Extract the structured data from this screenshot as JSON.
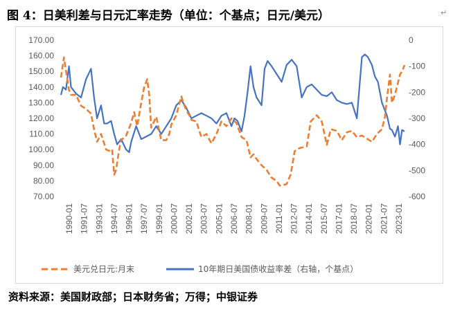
{
  "header": {
    "title": "图 4：日美利差与日元汇率走势（单位：个基点；日元/美元）",
    "end_mark": "↵"
  },
  "footer": {
    "source": "资料来源：美国财政部；日本财务省；万得；中银证券"
  },
  "colors": {
    "usdjpy": "#ED7D31",
    "spread": "#4472C4",
    "axis_text": "#595959",
    "frame": "#d9d9d9"
  },
  "chart_data": {
    "type": "line",
    "title": "",
    "x_tick_labels": [
      "1990-01",
      "1991-07",
      "1993-01",
      "1994-07",
      "1996-01",
      "1997-07",
      "1999-01",
      "2000-07",
      "2002-01",
      "2003-07",
      "2005-01",
      "2006-07",
      "2008-01",
      "2009-07",
      "2011-01",
      "2012-07",
      "2014-01",
      "2015-07",
      "2017-01",
      "2018-07",
      "2020-01",
      "2021-07",
      "2023-01"
    ],
    "x_range": [
      1990.0,
      2024.25
    ],
    "y_left": {
      "ylim": [
        70,
        170
      ],
      "ticks": [
        "70.00",
        "80.00",
        "90.00",
        "100.00",
        "110.00",
        "120.00",
        "130.00",
        "140.00",
        "150.00",
        "160.00",
        "170.00"
      ]
    },
    "y_right": {
      "ylim": [
        -600,
        0
      ],
      "ticks": [
        "-600",
        "-500",
        "-400",
        "-300",
        "-200",
        "-100",
        "0"
      ]
    },
    "series": [
      {
        "name": "美元兑日元:月末",
        "axis": "left",
        "style": "dashed",
        "x": [
          1990.0,
          1990.3,
          1990.8,
          1991.0,
          1991.5,
          1992.0,
          1992.5,
          1993.0,
          1993.3,
          1993.6,
          1994.0,
          1994.5,
          1994.9,
          1995.1,
          1995.3,
          1995.5,
          1995.8,
          1996.0,
          1996.5,
          1997.0,
          1997.3,
          1997.6,
          1998.0,
          1998.3,
          1998.6,
          1998.8,
          1999.0,
          1999.5,
          2000.0,
          2000.5,
          2000.8,
          2001.0,
          2001.5,
          2002.0,
          2002.2,
          2002.5,
          2002.8,
          2003.0,
          2003.5,
          2004.0,
          2004.5,
          2005.0,
          2005.5,
          2006.0,
          2006.5,
          2007.0,
          2007.5,
          2008.0,
          2008.5,
          2008.9,
          2009.2,
          2009.5,
          2010.0,
          2010.5,
          2011.0,
          2011.5,
          2011.8,
          2012.0,
          2012.5,
          2012.9,
          2013.3,
          2013.8,
          2014.5,
          2014.9,
          2015.5,
          2016.0,
          2016.5,
          2016.9,
          2017.5,
          2018.0,
          2018.5,
          2019.0,
          2019.5,
          2020.0,
          2020.5,
          2021.0,
          2021.5,
          2022.0,
          2022.3,
          2022.5,
          2022.8,
          2023.0,
          2023.3,
          2023.8,
          2024.0,
          2024.25
        ],
        "values": [
          146,
          159,
          138,
          135,
          135,
          128,
          126,
          123,
          113,
          105,
          110,
          100,
          99,
          100,
          84,
          87,
          100,
          106,
          109,
          117,
          124,
          115,
          130,
          140,
          145,
          135,
          114,
          121,
          106,
          106,
          110,
          116,
          122,
          134,
          130,
          125,
          122,
          119,
          118,
          108,
          110,
          104,
          110,
          118,
          115,
          120,
          117,
          108,
          106,
          95,
          97,
          94,
          90,
          87,
          82,
          80,
          77,
          77,
          78,
          84,
          99,
          101,
          102,
          118,
          122,
          118,
          103,
          113,
          112,
          106,
          111,
          112,
          108,
          109,
          107,
          105,
          110,
          113,
          121,
          133,
          148,
          130,
          135,
          148,
          150,
          154
        ]
      },
      {
        "name": "10年期日美国债收益率差（右轴，个基点）",
        "axis": "right",
        "style": "solid",
        "x": [
          1990.0,
          1990.2,
          1990.5,
          1990.8,
          1991.0,
          1991.5,
          1992.0,
          1992.5,
          1993.0,
          1993.3,
          1993.6,
          1994.0,
          1994.3,
          1994.6,
          1995.0,
          1995.3,
          1995.6,
          1996.0,
          1996.5,
          1996.8,
          1997.0,
          1997.5,
          1998.0,
          1998.5,
          1999.0,
          1999.5,
          2000.0,
          2000.5,
          2001.0,
          2001.5,
          2002.0,
          2002.5,
          2003.0,
          2003.5,
          2004.0,
          2004.5,
          2005.0,
          2005.5,
          2006.0,
          2006.5,
          2007.0,
          2007.3,
          2007.6,
          2008.0,
          2008.3,
          2008.6,
          2008.9,
          2009.2,
          2009.5,
          2010.0,
          2010.3,
          2010.6,
          2011.0,
          2011.5,
          2012.0,
          2012.5,
          2013.0,
          2013.5,
          2014.0,
          2014.5,
          2015.0,
          2015.5,
          2016.0,
          2016.5,
          2017.0,
          2017.5,
          2018.0,
          2018.5,
          2019.0,
          2019.5,
          2020.0,
          2020.3,
          2020.6,
          2021.0,
          2021.3,
          2021.6,
          2022.0,
          2022.3,
          2022.5,
          2022.8,
          2023.0,
          2023.3,
          2023.6,
          2023.8,
          2024.0,
          2024.25
        ],
        "values": [
          -210,
          -180,
          -190,
          -100,
          -180,
          -205,
          -220,
          -150,
          -110,
          -220,
          -300,
          -250,
          -320,
          -320,
          -310,
          -360,
          -400,
          -380,
          -420,
          -430,
          -390,
          -330,
          -380,
          -370,
          -360,
          -330,
          -360,
          -330,
          -300,
          -250,
          -230,
          -260,
          -300,
          -290,
          -280,
          -290,
          -300,
          -320,
          -290,
          -280,
          -330,
          -300,
          -310,
          -350,
          -290,
          -200,
          -100,
          -180,
          -220,
          -250,
          -110,
          -80,
          -100,
          -130,
          -160,
          -95,
          -75,
          -100,
          -220,
          -180,
          -170,
          -190,
          -210,
          -215,
          -200,
          -230,
          -240,
          -245,
          -240,
          -300,
          -65,
          -55,
          -65,
          -95,
          -140,
          -160,
          -240,
          -270,
          -290,
          -340,
          -345,
          -370,
          -330,
          -400,
          -345,
          -350
        ]
      }
    ],
    "legend": "bottom",
    "grid": false
  }
}
